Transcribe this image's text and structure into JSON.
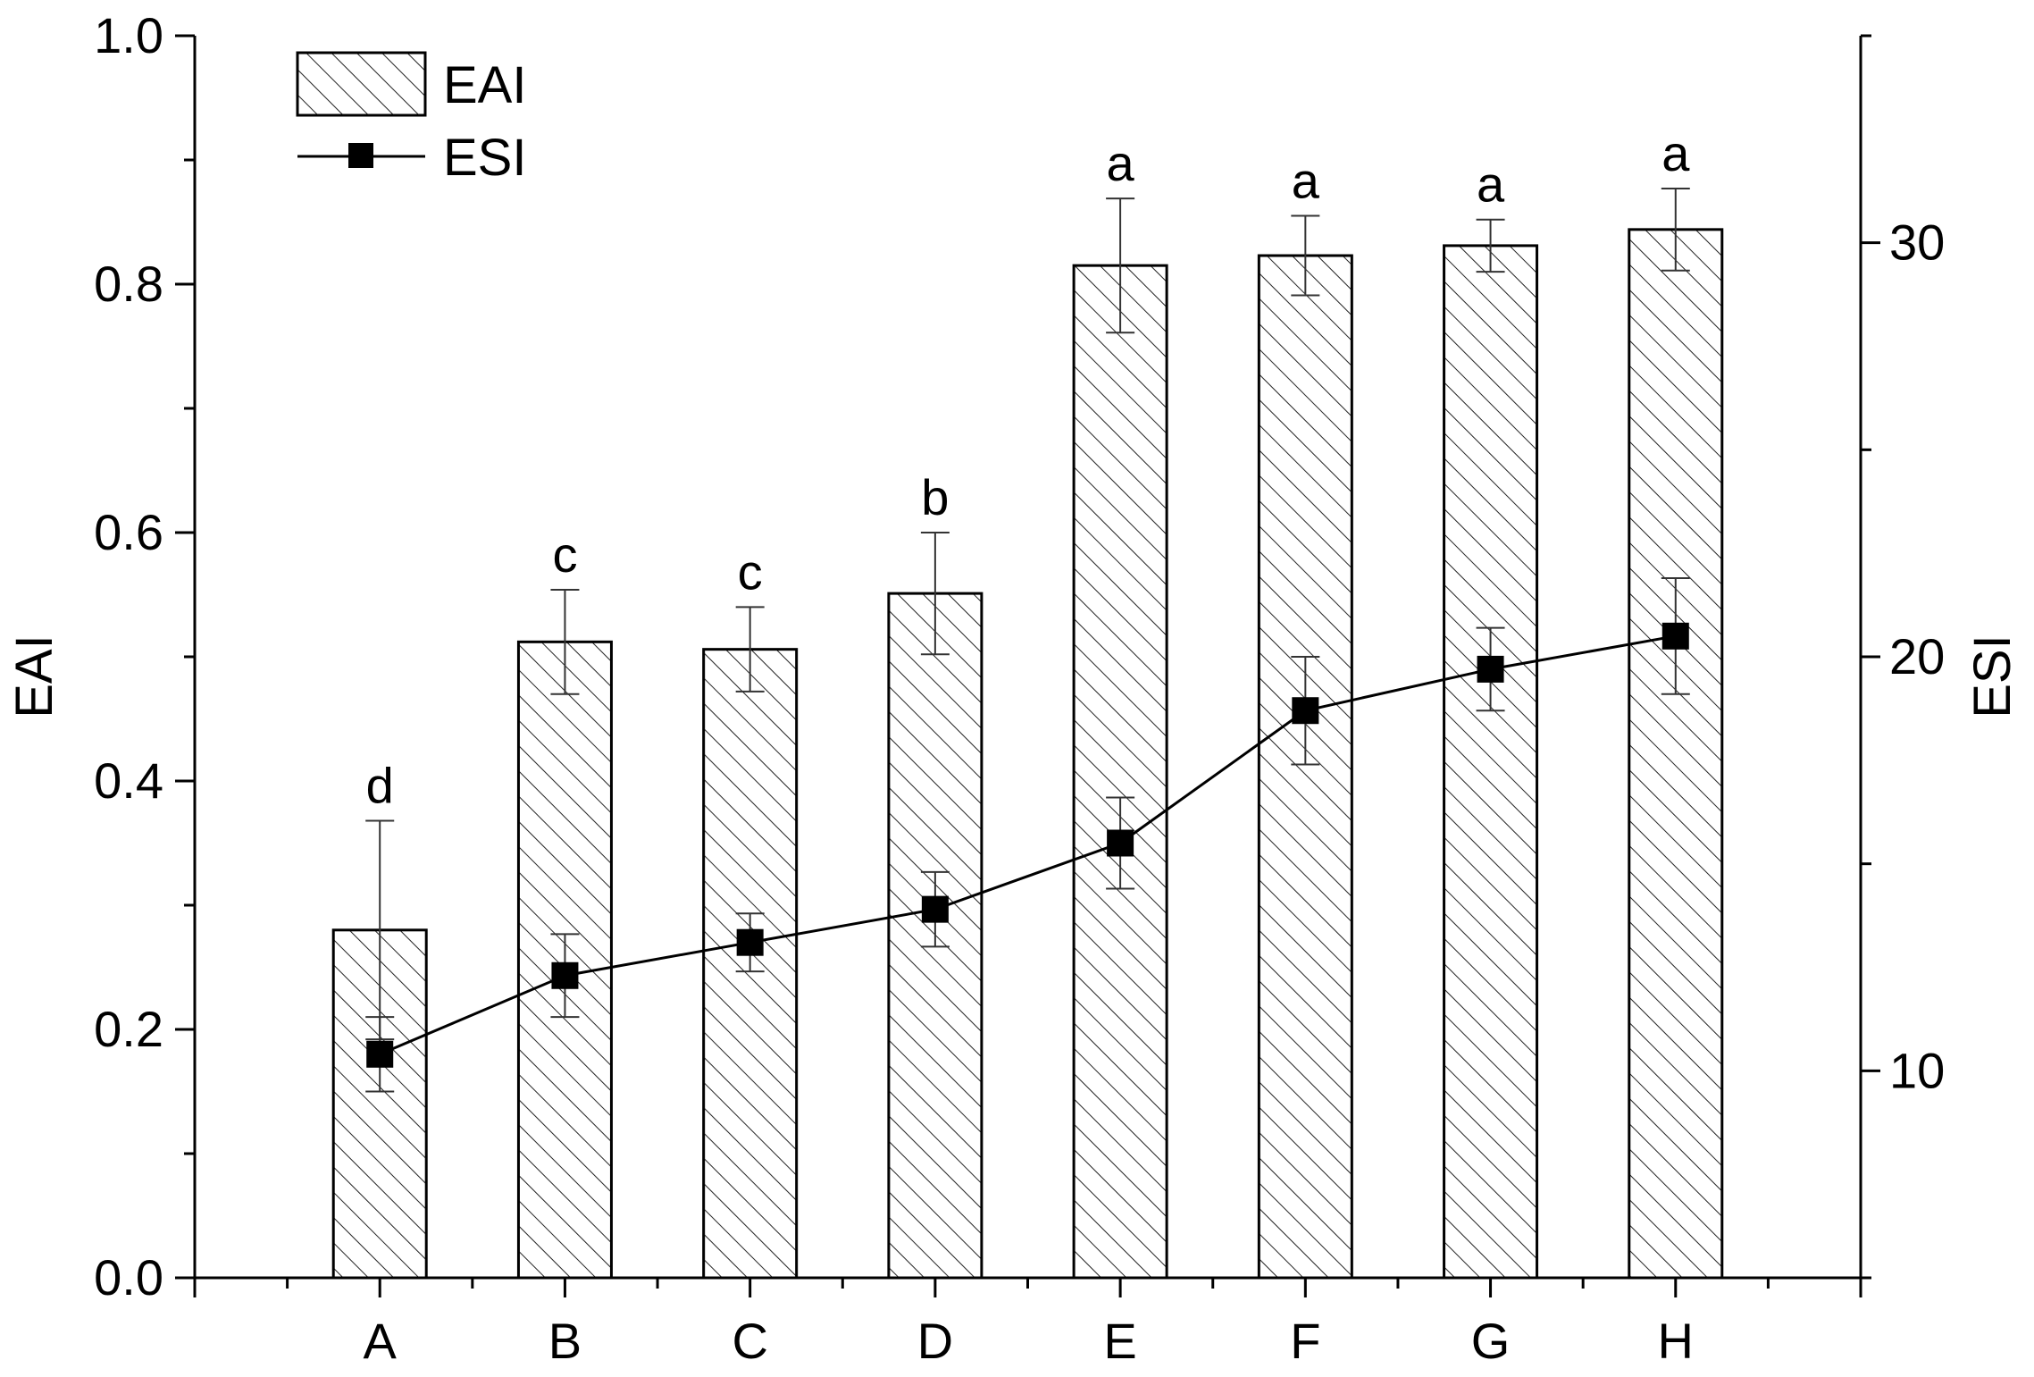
{
  "chart_data": {
    "type": "bar",
    "categories": [
      "A",
      "B",
      "C",
      "D",
      "E",
      "F",
      "G",
      "H"
    ],
    "series": [
      {
        "name": "EAI",
        "kind": "bar",
        "axis": "left",
        "values": [
          0.28,
          0.512,
          0.506,
          0.551,
          0.815,
          0.823,
          0.831,
          0.844
        ],
        "errors": [
          0.088,
          0.042,
          0.034,
          0.049,
          0.054,
          0.032,
          0.021,
          0.033
        ],
        "significance": [
          "d",
          "c",
          "c",
          "b",
          "a",
          "a",
          "a",
          "a"
        ]
      },
      {
        "name": "ESI",
        "kind": "line",
        "axis": "right",
        "values": [
          10.4,
          12.3,
          13.1,
          13.9,
          15.5,
          18.7,
          19.7,
          20.5
        ],
        "errors": [
          0.9,
          1.0,
          0.7,
          0.9,
          1.1,
          1.3,
          1.0,
          1.4
        ]
      }
    ],
    "ylabel": "EAI",
    "ylabel_right": "ESI",
    "ylim": [
      0,
      1.0
    ],
    "ylim_right": [
      5,
      35
    ],
    "yticks": [
      "0.0",
      "0.2",
      "0.4",
      "0.6",
      "0.8",
      "1.0"
    ],
    "yticks_right": [
      "10",
      "20",
      "30"
    ],
    "legend_position": "top-left",
    "grid": false
  }
}
